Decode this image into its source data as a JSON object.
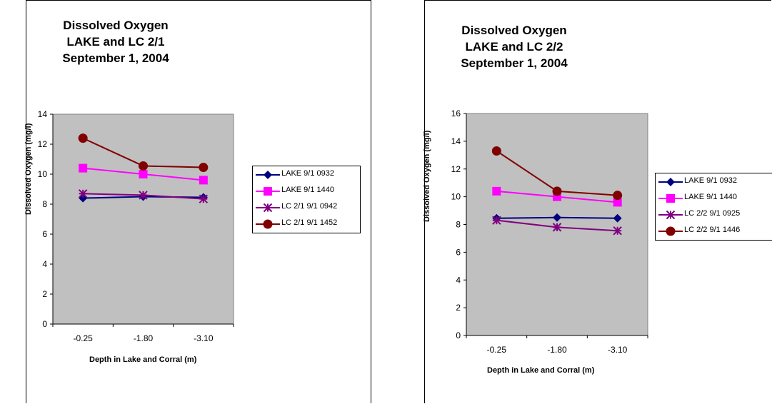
{
  "chart_data": [
    {
      "type": "line",
      "title": [
        "Dissolved Oxygen",
        "LAKE and LC 2/1",
        "September 1, 2004"
      ],
      "xlabel": "Depth in Lake and Corral (m)",
      "ylabel": "Dissolved Oxygen (mg/l)",
      "categories": [
        "-0.25",
        "-1.80",
        "-3.10"
      ],
      "ylim": [
        0,
        14
      ],
      "yticks": [
        "0",
        "2",
        "4",
        "6",
        "8",
        "10",
        "12",
        "14"
      ],
      "plot_background": "#c0c0c0",
      "grid": false,
      "legend_position": "right",
      "series": [
        {
          "name": "LAKE 9/1 0932",
          "values": [
            8.4,
            8.5,
            8.45
          ],
          "color": "#000080",
          "marker": "diamond"
        },
        {
          "name": "LAKE 9/1 1440",
          "values": [
            10.4,
            10.0,
            9.6
          ],
          "color": "#ff00ff",
          "marker": "square"
        },
        {
          "name": "LC 2/1 9/1 0942",
          "values": [
            8.7,
            8.6,
            8.35
          ],
          "color": "#800080",
          "marker": "asterisk"
        },
        {
          "name": "LC 2/1 9/1 1452",
          "values": [
            12.4,
            10.55,
            10.45
          ],
          "color": "#800000",
          "marker": "circle"
        }
      ]
    },
    {
      "type": "line",
      "title": [
        "Dissolved Oxygen",
        "LAKE and LC 2/2",
        "September 1, 2004"
      ],
      "xlabel": "Depth in Lake and Corral (m)",
      "ylabel": "Dissolved Oxygen (mg/l)",
      "categories": [
        "-0.25",
        "-1.80",
        "-3.10"
      ],
      "ylim": [
        0,
        16
      ],
      "yticks": [
        "0",
        "2",
        "4",
        "6",
        "8",
        "10",
        "12",
        "14",
        "16"
      ],
      "plot_background": "#c0c0c0",
      "grid": false,
      "legend_position": "right",
      "series": [
        {
          "name": "LAKE 9/1 0932",
          "values": [
            8.45,
            8.5,
            8.45
          ],
          "color": "#000080",
          "marker": "diamond"
        },
        {
          "name": "LAKE 9/1 1440",
          "values": [
            10.4,
            10.0,
            9.6
          ],
          "color": "#ff00ff",
          "marker": "square"
        },
        {
          "name": "LC 2/2 9/1  0925",
          "values": [
            8.3,
            7.8,
            7.55
          ],
          "color": "#800080",
          "marker": "asterisk"
        },
        {
          "name": "LC 2/2 9/1  1446",
          "values": [
            13.3,
            10.4,
            10.1
          ],
          "color": "#800000",
          "marker": "circle"
        }
      ]
    }
  ]
}
